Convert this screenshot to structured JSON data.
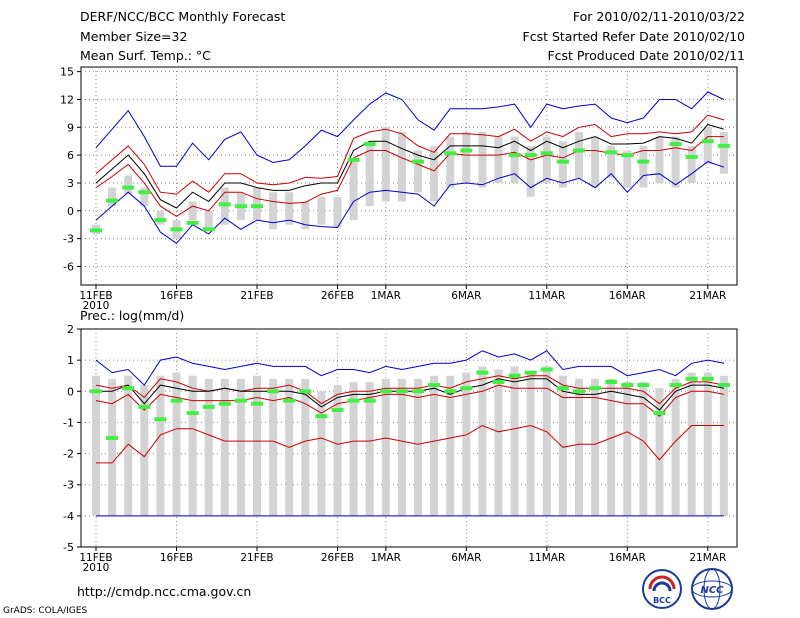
{
  "header": {
    "left": [
      "DERF/NCC/BCC Monthly Forecast",
      "Member Size=32",
      "Mean Surf. Temp.: °C"
    ],
    "right": [
      "For 2010/02/11-2010/03/22",
      "Fcst Started Refer Date 2010/02/10",
      "Fcst Produced Date 2010/02/11"
    ]
  },
  "panel2_title": "Prec.: log(mm/d)",
  "footer": {
    "url": "http://cmdp.ncc.cma.gov.cn",
    "grads": "GrADS: COLA/IGES"
  },
  "logos": {
    "bcc_text": "BCC",
    "ncc_text": "NCC"
  },
  "colors": {
    "max": "#0000cc",
    "pct": "#cc0000",
    "median": "#000000",
    "obs": "#44ee44",
    "box": "#d3d3d3",
    "line": "#0000cc"
  },
  "x_ticks": {
    "labels": [
      "11FEB",
      "16FEB",
      "21FEB",
      "26FEB",
      "1MAR",
      "6MAR",
      "11MAR",
      "16MAR",
      "21MAR"
    ],
    "day_index": [
      0,
      5,
      10,
      15,
      18,
      23,
      28,
      33,
      38
    ],
    "year_label": "2010"
  },
  "chart_data": [
    {
      "type": "line",
      "title": "Mean Surf. Temp.: °C",
      "x_unit": "day index (0 = 11FEB 2010)",
      "ylim": [
        -8,
        15.5
      ],
      "yticks": [
        -6,
        -3,
        0,
        3,
        6,
        9,
        12,
        15
      ],
      "grid": true,
      "series": [
        {
          "name": "max",
          "values": [
            6.8,
            8.8,
            10.8,
            8.0,
            4.8,
            4.8,
            7.3,
            5.5,
            7.7,
            8.5,
            6.0,
            5.2,
            5.5,
            7.0,
            8.7,
            8.0,
            9.8,
            11.5,
            12.7,
            12.0,
            9.8,
            8.7,
            11.0,
            11.0,
            11.0,
            11.2,
            11.5,
            9.0,
            11.5,
            11.0,
            11.3,
            11.5,
            10.0,
            9.5,
            10.0,
            12.0,
            12.0,
            11.0,
            12.8,
            12.0
          ]
        },
        {
          "name": "upper percentile",
          "values": [
            4.0,
            5.5,
            7.0,
            5.0,
            2.0,
            1.8,
            3.2,
            2.0,
            4.0,
            4.0,
            3.0,
            2.8,
            3.0,
            3.6,
            3.5,
            3.7,
            7.8,
            8.5,
            8.8,
            8.3,
            7.0,
            6.3,
            8.3,
            8.3,
            8.2,
            8.0,
            8.8,
            7.5,
            8.5,
            8.0,
            9.0,
            9.3,
            8.0,
            8.3,
            8.3,
            8.5,
            8.3,
            8.5,
            10.3,
            9.8
          ]
        },
        {
          "name": "median",
          "values": [
            3.0,
            4.5,
            6.0,
            4.0,
            1.2,
            0.3,
            2.0,
            1.0,
            3.0,
            3.0,
            2.5,
            2.2,
            2.2,
            2.7,
            3.0,
            3.0,
            6.5,
            7.5,
            7.5,
            6.7,
            6.0,
            5.5,
            7.0,
            7.0,
            7.0,
            6.8,
            7.5,
            6.5,
            7.5,
            6.8,
            7.5,
            8.0,
            7.2,
            7.2,
            7.3,
            8.0,
            7.8,
            7.3,
            9.3,
            8.8
          ]
        },
        {
          "name": "lower percentile",
          "values": [
            2.5,
            3.7,
            5.0,
            3.0,
            0.5,
            -0.6,
            0.5,
            0.0,
            2.0,
            2.0,
            1.3,
            1.0,
            0.8,
            0.9,
            1.8,
            2.2,
            5.7,
            6.5,
            6.5,
            5.7,
            5.0,
            4.3,
            6.2,
            6.0,
            6.0,
            6.0,
            6.3,
            5.5,
            6.0,
            5.7,
            6.5,
            6.5,
            6.2,
            6.0,
            6.5,
            6.5,
            6.8,
            6.5,
            8.0,
            8.0
          ]
        },
        {
          "name": "min",
          "values": [
            -1.0,
            0.5,
            2.0,
            0.5,
            -2.3,
            -3.5,
            -1.5,
            -2.5,
            -0.8,
            -2.0,
            -1.0,
            -1.3,
            -1.0,
            -1.5,
            -1.7,
            -1.8,
            1.0,
            2.0,
            2.2,
            2.0,
            1.8,
            0.5,
            2.8,
            3.0,
            2.8,
            3.5,
            4.0,
            2.5,
            3.5,
            3.0,
            3.5,
            2.5,
            4.0,
            2.0,
            3.8,
            4.0,
            2.8,
            4.0,
            5.3,
            4.7
          ]
        }
      ],
      "box_range": {
        "low": [
          -2.5,
          0.5,
          1.8,
          0.5,
          -1.5,
          -3.0,
          -1.0,
          -2.0,
          -1.5,
          -1.0,
          -1.0,
          -2.0,
          -1.5,
          -2.0,
          -1.5,
          -1.8,
          -1.0,
          0.5,
          1.0,
          1.0,
          2.0,
          1.0,
          2.5,
          3.0,
          2.5,
          3.0,
          3.0,
          1.5,
          3.0,
          2.5,
          3.5,
          2.5,
          3.5,
          2.5,
          2.5,
          3.0,
          2.5,
          3.0,
          5.0,
          4.0
        ],
        "high": [
          -1.5,
          2.5,
          3.8,
          2.5,
          0.0,
          -1.0,
          1.0,
          0.0,
          2.5,
          2.0,
          2.5,
          2.0,
          2.0,
          1.0,
          1.5,
          1.5,
          5.5,
          7.0,
          9.0,
          8.5,
          6.5,
          7.0,
          8.0,
          8.5,
          8.5,
          8.0,
          8.0,
          7.0,
          8.0,
          7.5,
          8.5,
          8.0,
          7.0,
          6.5,
          7.0,
          8.0,
          8.0,
          7.0,
          9.0,
          8.5
        ]
      },
      "observed": [
        -2.1,
        1.1,
        2.5,
        2.0,
        -1.0,
        -2.0,
        -1.3,
        -2.0,
        0.7,
        0.5,
        0.5,
        null,
        null,
        null,
        null,
        null,
        5.5,
        7.2,
        null,
        null,
        5.3,
        null,
        6.2,
        6.5,
        null,
        null,
        6.0,
        6.0,
        6.2,
        5.3,
        6.5,
        null,
        6.3,
        6.0,
        5.3,
        null,
        7.2,
        5.8,
        7.5,
        7.0
      ]
    },
    {
      "type": "line",
      "title": "Prec.: log(mm/d)",
      "x_unit": "day index (0 = 11FEB 2010)",
      "ylim": [
        -5,
        2
      ],
      "yticks": [
        -5,
        -4,
        -3,
        -2,
        -1,
        0,
        1,
        2
      ],
      "grid": true,
      "series": [
        {
          "name": "max",
          "values": [
            1.0,
            0.6,
            0.7,
            0.2,
            1.0,
            1.1,
            0.9,
            0.8,
            0.7,
            0.8,
            0.9,
            0.8,
            0.8,
            0.8,
            0.5,
            0.7,
            0.7,
            0.6,
            0.8,
            0.7,
            0.8,
            0.9,
            0.9,
            1.0,
            1.3,
            1.1,
            1.2,
            1.0,
            1.3,
            0.7,
            0.8,
            0.8,
            0.8,
            0.5,
            0.6,
            0.7,
            0.5,
            0.9,
            1.0,
            0.9
          ]
        },
        {
          "name": "upper percentile",
          "values": [
            0.2,
            0.1,
            0.2,
            -0.2,
            0.4,
            0.3,
            0.1,
            0.0,
            0.1,
            0.0,
            0.1,
            0.1,
            0.2,
            0.0,
            -0.4,
            -0.1,
            0.0,
            0.0,
            0.1,
            0.1,
            0.1,
            0.2,
            0.1,
            0.3,
            0.4,
            0.5,
            0.4,
            0.5,
            0.5,
            0.2,
            0.1,
            0.1,
            0.1,
            0.1,
            0.0,
            -0.4,
            0.1,
            0.3,
            0.3,
            0.2
          ]
        },
        {
          "name": "median",
          "values": [
            0.0,
            0.0,
            0.2,
            -0.4,
            0.2,
            0.1,
            0.0,
            0.0,
            0.1,
            0.0,
            0.0,
            0.0,
            0.0,
            -0.1,
            -0.5,
            -0.2,
            -0.1,
            -0.1,
            0.0,
            0.0,
            0.0,
            0.1,
            -0.1,
            0.1,
            0.2,
            0.4,
            0.3,
            0.4,
            0.4,
            0.0,
            -0.1,
            -0.1,
            0.0,
            -0.1,
            -0.2,
            -0.6,
            0.0,
            0.2,
            0.2,
            0.1
          ]
        },
        {
          "name": "lower percentile",
          "values": [
            -0.3,
            -0.4,
            -0.1,
            -0.6,
            -0.1,
            -0.2,
            -0.3,
            -0.3,
            -0.3,
            -0.3,
            -0.2,
            -0.3,
            -0.2,
            -0.4,
            -0.7,
            -0.4,
            -0.3,
            -0.2,
            -0.1,
            -0.1,
            -0.2,
            -0.1,
            -0.2,
            -0.1,
            0.0,
            0.2,
            0.1,
            0.1,
            0.1,
            -0.2,
            -0.2,
            -0.2,
            -0.3,
            -0.4,
            -0.4,
            -0.8,
            -0.2,
            0.0,
            0.0,
            -0.1
          ]
        },
        {
          "name": "lower bound",
          "values": [
            -2.3,
            -2.3,
            -1.7,
            -2.1,
            -1.4,
            -1.2,
            -1.2,
            -1.4,
            -1.6,
            -1.6,
            -1.6,
            -1.6,
            -1.8,
            -1.6,
            -1.5,
            -1.7,
            -1.6,
            -1.6,
            -1.5,
            -1.6,
            -1.7,
            -1.6,
            -1.5,
            -1.4,
            -1.1,
            -1.3,
            -1.2,
            -1.1,
            -1.3,
            -1.8,
            -1.7,
            -1.7,
            -1.5,
            -1.3,
            -1.6,
            -2.2,
            -1.6,
            -1.1,
            -1.1,
            -1.1
          ]
        }
      ],
      "box_range": {
        "low": [
          -4.0,
          -4.0,
          -4.0,
          -4.0,
          -4.0,
          -4.0,
          -4.0,
          -4.0,
          -4.0,
          -4.0,
          -4.0,
          -4.0,
          -4.0,
          -4.0,
          -4.0,
          -4.0,
          -4.0,
          -4.0,
          -4.0,
          -4.0,
          -4.0,
          -4.0,
          -4.0,
          -4.0,
          -4.0,
          -4.0,
          -4.0,
          -4.0,
          -4.0,
          -4.0,
          -4.0,
          -4.0,
          -4.0,
          -4.0,
          -4.0,
          -4.0,
          -4.0,
          -4.0,
          -4.0,
          -4.0
        ],
        "high": [
          0.5,
          0.4,
          0.5,
          0.2,
          0.5,
          0.6,
          0.5,
          0.4,
          0.4,
          0.4,
          0.5,
          0.4,
          0.4,
          0.4,
          0.0,
          0.2,
          0.3,
          0.3,
          0.4,
          0.4,
          0.4,
          0.5,
          0.5,
          0.6,
          0.8,
          0.7,
          0.8,
          0.6,
          0.8,
          0.5,
          0.4,
          0.4,
          0.4,
          0.3,
          0.3,
          0.1,
          0.4,
          0.6,
          0.6,
          0.5
        ]
      },
      "floor_line": -4,
      "observed": [
        0.0,
        -1.5,
        0.1,
        -0.5,
        -0.9,
        -0.3,
        -0.7,
        -0.5,
        -0.4,
        -0.3,
        -0.4,
        0.0,
        -0.3,
        0.0,
        -0.8,
        -0.6,
        -0.3,
        -0.3,
        0.0,
        0.0,
        0.0,
        0.2,
        0.0,
        0.1,
        0.6,
        0.3,
        0.5,
        0.6,
        0.7,
        0.1,
        0.0,
        0.1,
        0.3,
        0.2,
        0.2,
        -0.7,
        0.2,
        0.4,
        0.4,
        0.2
      ]
    }
  ]
}
